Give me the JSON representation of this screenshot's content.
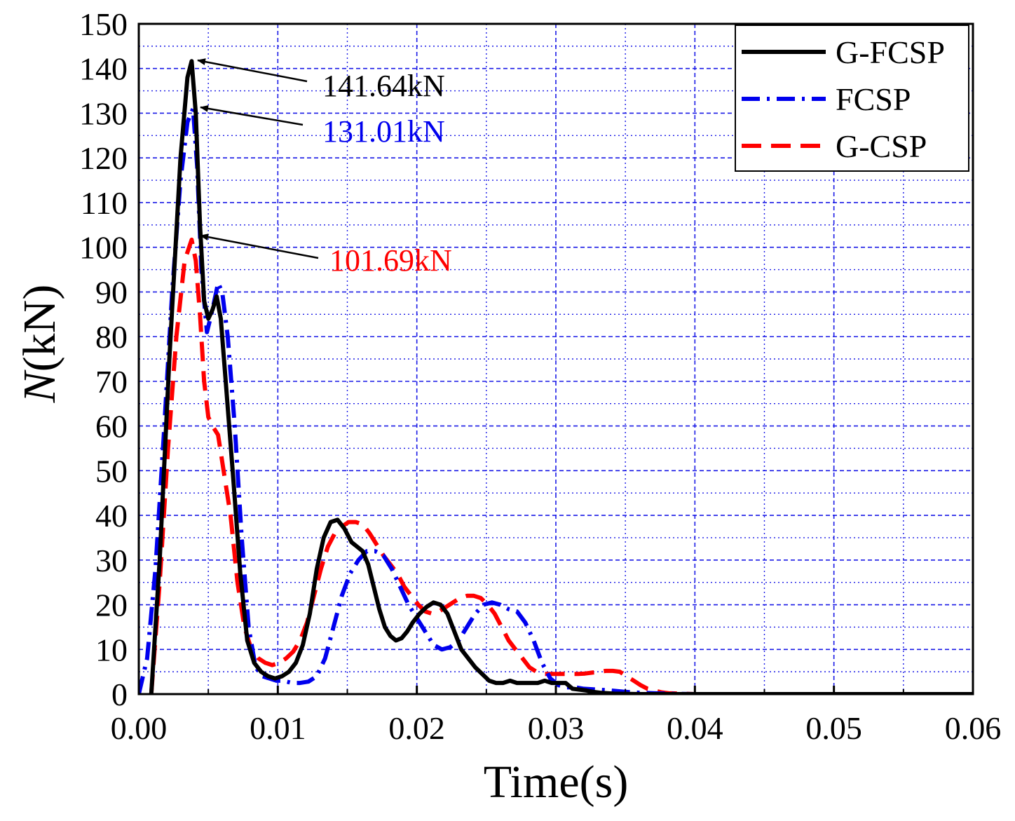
{
  "chart_data": {
    "type": "line",
    "title": "",
    "xlabel": "Time(s)",
    "ylabel_italic": "N",
    "ylabel_rest": "(kN)",
    "xlim": [
      0,
      0.06
    ],
    "ylim": [
      0,
      150
    ],
    "xticks": [
      0,
      0.01,
      0.02,
      0.03,
      0.04,
      0.05,
      0.06
    ],
    "xtick_labels": [
      "0.00",
      "0.01",
      "0.02",
      "0.03",
      "0.04",
      "0.05",
      "0.06"
    ],
    "yticks": [
      0,
      10,
      20,
      30,
      40,
      50,
      60,
      70,
      80,
      90,
      100,
      110,
      120,
      130,
      140,
      150
    ],
    "ytick_labels": [
      "0",
      "10",
      "20",
      "30",
      "40",
      "50",
      "60",
      "70",
      "80",
      "90",
      "100",
      "110",
      "120",
      "130",
      "140",
      "150"
    ],
    "grid": true,
    "legend_position": "top-right",
    "series": [
      {
        "name": "G-FCSP",
        "color": "#000000",
        "style": "solid",
        "x": [
          0.0009,
          0.0015,
          0.0022,
          0.003,
          0.0035,
          0.0038,
          0.0041,
          0.0044,
          0.0047,
          0.005,
          0.0053,
          0.0056,
          0.0059,
          0.0063,
          0.0068,
          0.0073,
          0.0078,
          0.0083,
          0.0088,
          0.0093,
          0.0098,
          0.0103,
          0.0108,
          0.0113,
          0.0118,
          0.0123,
          0.0128,
          0.0133,
          0.0138,
          0.0143,
          0.0148,
          0.0153,
          0.0157,
          0.0161,
          0.0165,
          0.0169,
          0.0173,
          0.0177,
          0.0181,
          0.0185,
          0.0189,
          0.0193,
          0.0197,
          0.0202,
          0.0207,
          0.0212,
          0.0217,
          0.0222,
          0.0227,
          0.0232,
          0.0237,
          0.0242,
          0.0247,
          0.0252,
          0.0257,
          0.0262,
          0.0267,
          0.0272,
          0.0277,
          0.0282,
          0.0287,
          0.0292,
          0.0297,
          0.0302,
          0.0307,
          0.0312,
          0.0317,
          0.0322,
          0.0327,
          0.0332,
          0.0337,
          0.0342,
          0.036,
          0.038,
          0.04,
          0.045,
          0.05,
          0.055,
          0.06
        ],
        "y": [
          0,
          30,
          75,
          120,
          138,
          141.64,
          130,
          105,
          88,
          84,
          86,
          89,
          84,
          68,
          48,
          27,
          12,
          7,
          5,
          4,
          3.5,
          4,
          5,
          7,
          11,
          18,
          28,
          35,
          38.5,
          39,
          37,
          34,
          33,
          32,
          29,
          24,
          19,
          15,
          13,
          12,
          12.5,
          14,
          16,
          18,
          19.5,
          20.5,
          20,
          18,
          14,
          10,
          8,
          6,
          4.5,
          3,
          2.5,
          2.5,
          3,
          2.5,
          2.5,
          2.5,
          2.5,
          3,
          2.5,
          2.5,
          2.5,
          1.2,
          1,
          0.8,
          0.5,
          0.3,
          0.2,
          0.1,
          0,
          0,
          0,
          0,
          0,
          0,
          0
        ]
      },
      {
        "name": "FCSP",
        "color": "#0000ee",
        "style": "dashdot",
        "x": [
          0,
          0.0006,
          0.0012,
          0.0018,
          0.0024,
          0.003,
          0.0035,
          0.0039,
          0.0042,
          0.0045,
          0.0049,
          0.0053,
          0.0057,
          0.006,
          0.0064,
          0.0069,
          0.0074,
          0.0079,
          0.0084,
          0.0089,
          0.0094,
          0.0099,
          0.0104,
          0.011,
          0.0116,
          0.0122,
          0.0128,
          0.0134,
          0.014,
          0.0146,
          0.0152,
          0.0158,
          0.0164,
          0.017,
          0.0176,
          0.0182,
          0.0188,
          0.0194,
          0.02,
          0.0206,
          0.0212,
          0.0218,
          0.0224,
          0.023,
          0.0236,
          0.0242,
          0.0248,
          0.0254,
          0.026,
          0.0266,
          0.0272,
          0.0278,
          0.0284,
          0.029,
          0.0296,
          0.0302,
          0.0308,
          0.0314,
          0.032,
          0.033,
          0.034,
          0.035,
          0.036,
          0.037,
          0.038,
          0.04,
          0.045,
          0.05,
          0.055,
          0.06
        ],
        "y": [
          0,
          8,
          28,
          58,
          90,
          115,
          128,
          131.01,
          118,
          95,
          81,
          86,
          92,
          90,
          80,
          60,
          35,
          15,
          6,
          4,
          3.5,
          3,
          3,
          2.5,
          2.5,
          2.8,
          4,
          8,
          15,
          22,
          27,
          30,
          32,
          32,
          31,
          28,
          24,
          20,
          17,
          14,
          11,
          10,
          10.5,
          12,
          15,
          18,
          20,
          20.5,
          20,
          19,
          18.5,
          16,
          12,
          7,
          3.5,
          2,
          1.5,
          1.5,
          1.2,
          1,
          0.8,
          0.5,
          0.3,
          0.2,
          0.1,
          0,
          0,
          0,
          0,
          0
        ]
      },
      {
        "name": "G-CSP",
        "color": "#ff0000",
        "style": "dashed",
        "x": [
          0.0009,
          0.0015,
          0.0021,
          0.0027,
          0.0033,
          0.0038,
          0.0041,
          0.0044,
          0.0047,
          0.005,
          0.0053,
          0.0057,
          0.0061,
          0.0066,
          0.0071,
          0.0076,
          0.0081,
          0.0086,
          0.0091,
          0.0096,
          0.0101,
          0.0106,
          0.0111,
          0.0116,
          0.0121,
          0.0126,
          0.0131,
          0.0136,
          0.0141,
          0.0146,
          0.0151,
          0.0156,
          0.0161,
          0.0166,
          0.0171,
          0.0176,
          0.0181,
          0.0186,
          0.0191,
          0.0196,
          0.0201,
          0.0206,
          0.0211,
          0.0216,
          0.0221,
          0.0226,
          0.0231,
          0.0236,
          0.0241,
          0.0246,
          0.0251,
          0.0256,
          0.0261,
          0.0266,
          0.0271,
          0.0276,
          0.0281,
          0.0286,
          0.0291,
          0.0296,
          0.0301,
          0.0306,
          0.0311,
          0.0316,
          0.0321,
          0.0326,
          0.0331,
          0.0336,
          0.0341,
          0.0346,
          0.0351,
          0.0356,
          0.0361,
          0.0366,
          0.0371,
          0.0376,
          0.0381,
          0.039,
          0.04,
          0.045,
          0.05,
          0.055,
          0.06
        ],
        "y": [
          0,
          25,
          55,
          80,
          97,
          101.69,
          97,
          85,
          70,
          62,
          60,
          58,
          50,
          40,
          25,
          15,
          10,
          8,
          7,
          6.5,
          7,
          8,
          9.5,
          12,
          16,
          22,
          28,
          33,
          36,
          37.5,
          38.5,
          38.5,
          38,
          36,
          33.5,
          31,
          29,
          27,
          24,
          22,
          20,
          18.5,
          18,
          18.5,
          19.5,
          20.5,
          21.5,
          22,
          22,
          21.5,
          20,
          18,
          15,
          12,
          10,
          8,
          6,
          5,
          4.5,
          4.5,
          4.5,
          4.5,
          4.5,
          4.5,
          4.6,
          4.8,
          5,
          5.2,
          5.2,
          5,
          4,
          3,
          2,
          1.2,
          0.8,
          0.4,
          0.2,
          0.1,
          0,
          0,
          0,
          0,
          0
        ]
      }
    ],
    "annotations": [
      {
        "text": "141.64kN",
        "color": "#000000",
        "x": 0.0038,
        "y": 141.64
      },
      {
        "text": "131.01kN",
        "color": "#0000ee",
        "x": 0.0044,
        "y": 131.01
      },
      {
        "text": "101.69kN",
        "color": "#ff0000",
        "x": 0.0044,
        "y": 101.69
      }
    ]
  }
}
